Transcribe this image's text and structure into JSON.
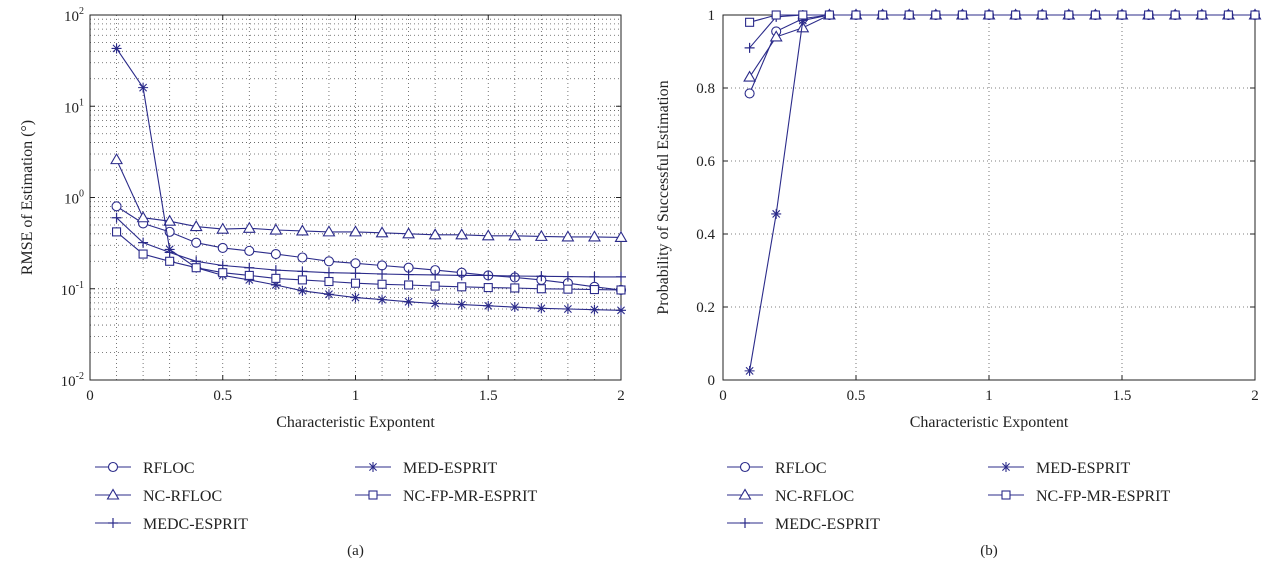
{
  "chart_data": [
    {
      "type": "line",
      "panel_label": "(a)",
      "xlabel": "Characteristic Expontent",
      "ylabel": "RMSE of Estimation (°)",
      "xlim": [
        0,
        2
      ],
      "ylim": [
        0.01,
        100
      ],
      "yscale": "log",
      "grid": true,
      "legend_position": "bottom",
      "x_ticks": [
        0,
        0.5,
        1,
        1.5,
        2
      ],
      "x_tick_labels": [
        "0",
        "0.5",
        "1",
        "1.5",
        "2"
      ],
      "y_ticks": [
        0.01,
        0.1,
        1,
        10,
        100
      ],
      "y_tick_labels": [
        {
          "base": "10",
          "exp": "-2"
        },
        {
          "base": "10",
          "exp": "-1"
        },
        {
          "base": "10",
          "exp": "0"
        },
        {
          "base": "10",
          "exp": "1"
        },
        {
          "base": "10",
          "exp": "2"
        }
      ],
      "x": [
        0.1,
        0.2,
        0.3,
        0.4,
        0.5,
        0.6,
        0.7,
        0.8,
        0.9,
        1.0,
        1.1,
        1.2,
        1.3,
        1.4,
        1.5,
        1.6,
        1.7,
        1.8,
        1.9,
        2.0
      ],
      "series": [
        {
          "name": "RFLOC",
          "marker": "circle",
          "values": [
            0.8,
            0.52,
            0.42,
            0.32,
            0.28,
            0.26,
            0.24,
            0.22,
            0.2,
            0.19,
            0.18,
            0.17,
            0.16,
            0.15,
            0.14,
            0.133,
            0.125,
            0.115,
            0.105,
            0.097
          ]
        },
        {
          "name": "NC-RFLOC",
          "marker": "triangle",
          "values": [
            2.6,
            0.6,
            0.55,
            0.48,
            0.45,
            0.46,
            0.44,
            0.43,
            0.42,
            0.42,
            0.41,
            0.4,
            0.39,
            0.39,
            0.38,
            0.38,
            0.375,
            0.37,
            0.37,
            0.365
          ]
        },
        {
          "name": "MEDC-ESPRIT",
          "marker": "plus",
          "values": [
            0.6,
            0.32,
            0.25,
            0.2,
            0.18,
            0.17,
            0.16,
            0.155,
            0.15,
            0.148,
            0.145,
            0.143,
            0.142,
            0.14,
            0.14,
            0.138,
            0.137,
            0.136,
            0.135,
            0.135
          ]
        },
        {
          "name": "MED-ESPRIT",
          "marker": "star",
          "values": [
            43,
            16,
            0.27,
            0.17,
            0.14,
            0.125,
            0.11,
            0.095,
            0.087,
            0.08,
            0.076,
            0.072,
            0.069,
            0.067,
            0.065,
            0.063,
            0.061,
            0.06,
            0.059,
            0.058
          ]
        },
        {
          "name": "NC-FP-MR-ESPRIT",
          "marker": "square",
          "values": [
            0.42,
            0.24,
            0.2,
            0.17,
            0.15,
            0.14,
            0.13,
            0.125,
            0.12,
            0.115,
            0.112,
            0.11,
            0.107,
            0.105,
            0.103,
            0.102,
            0.1,
            0.099,
            0.098,
            0.097
          ]
        }
      ]
    },
    {
      "type": "line",
      "panel_label": "(b)",
      "xlabel": "Characteristic Expontent",
      "ylabel": "Probability of Successful Estimation",
      "xlim": [
        0,
        2
      ],
      "ylim": [
        0,
        1
      ],
      "grid": true,
      "legend_position": "bottom",
      "x_ticks": [
        0,
        0.5,
        1,
        1.5,
        2
      ],
      "x_tick_labels": [
        "0",
        "0.5",
        "1",
        "1.5",
        "2"
      ],
      "y_ticks": [
        0,
        0.2,
        0.4,
        0.6,
        0.8,
        1
      ],
      "y_tick_labels": [
        "0",
        "0.2",
        "0.4",
        "0.6",
        "0.8",
        "1"
      ],
      "x": [
        0.1,
        0.2,
        0.3,
        0.4,
        0.5,
        0.6,
        0.7,
        0.8,
        0.9,
        1.0,
        1.1,
        1.2,
        1.3,
        1.4,
        1.5,
        1.6,
        1.7,
        1.8,
        1.9,
        2.0
      ],
      "series": [
        {
          "name": "RFLOC",
          "marker": "circle",
          "values": [
            0.785,
            0.955,
            0.99,
            1,
            1,
            1,
            1,
            1,
            1,
            1,
            1,
            1,
            1,
            1,
            1,
            1,
            1,
            1,
            1,
            1
          ]
        },
        {
          "name": "NC-RFLOC",
          "marker": "triangle",
          "values": [
            0.83,
            0.94,
            0.965,
            1,
            1,
            1,
            1,
            1,
            1,
            1,
            1,
            1,
            1,
            1,
            1,
            1,
            1,
            1,
            1,
            1
          ]
        },
        {
          "name": "MEDC-ESPRIT",
          "marker": "plus",
          "values": [
            0.91,
            0.995,
            1,
            1,
            1,
            1,
            1,
            1,
            1,
            1,
            1,
            1,
            1,
            1,
            1,
            1,
            1,
            1,
            1,
            1
          ]
        },
        {
          "name": "MED-ESPRIT",
          "marker": "star",
          "values": [
            0.025,
            0.455,
            0.985,
            1,
            1,
            1,
            1,
            1,
            1,
            1,
            1,
            1,
            1,
            1,
            1,
            1,
            1,
            1,
            1,
            1
          ]
        },
        {
          "name": "NC-FP-MR-ESPRIT",
          "marker": "square",
          "values": [
            0.98,
            1,
            1,
            1,
            1,
            1,
            1,
            1,
            1,
            1,
            1,
            1,
            1,
            1,
            1,
            1,
            1,
            1,
            1,
            1
          ]
        }
      ]
    }
  ],
  "colors": {
    "series_line": "#2b2b8a",
    "axis": "#222222",
    "grid": "#555555"
  }
}
